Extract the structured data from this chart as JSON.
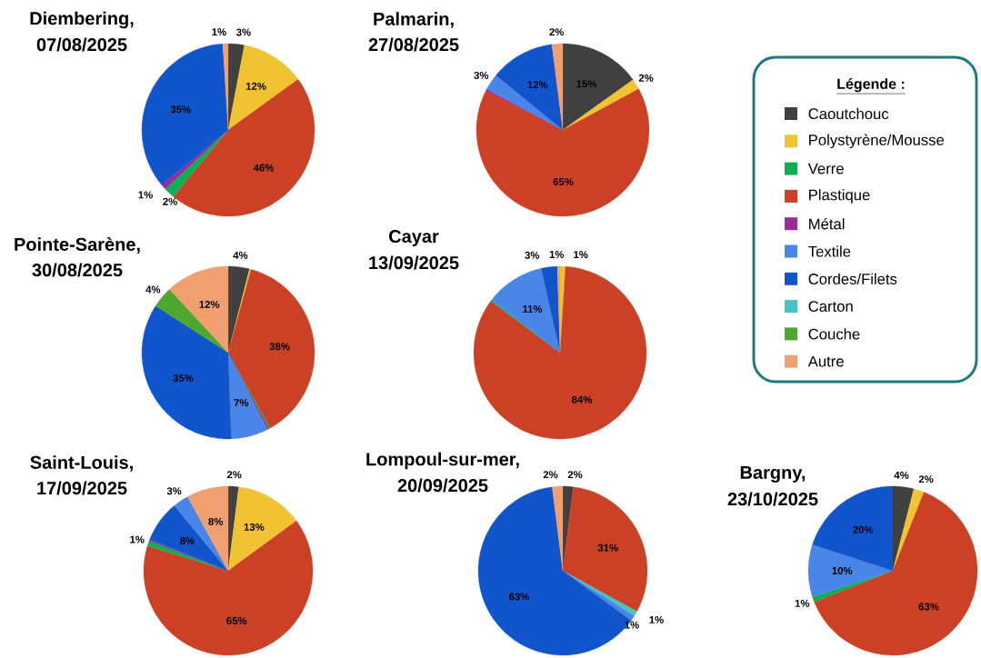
{
  "chart_data": [
    {
      "type": "pie",
      "title": "Diembering,",
      "subtitle": "07/08/2025",
      "values": [
        3,
        12,
        46,
        2,
        1,
        35,
        1
      ],
      "colors": [
        "#404040",
        "#f1c232",
        "#cc4125",
        "#0fae52",
        "#9c2a9c",
        "#1155cc",
        "#f0a070"
      ],
      "value_labels": [
        "3%",
        "12%",
        "46%",
        "2%",
        "1%",
        "35%",
        "1%"
      ]
    },
    {
      "type": "pie",
      "title": "Palmarin,",
      "subtitle": "27/08/2025",
      "values": [
        15,
        2,
        65,
        0.3,
        3,
        12,
        2
      ],
      "colors": [
        "#404040",
        "#f1c232",
        "#cc4125",
        "#9c2a9c",
        "#4a86e8",
        "#1155cc",
        "#f0a070"
      ],
      "value_labels": [
        "15%",
        "2%",
        "65%",
        null,
        "3%",
        "12%",
        "2%"
      ]
    },
    {
      "type": "pie",
      "title": "Pointe-Sarène,",
      "subtitle": "30/08/2025",
      "values": [
        4,
        0.3,
        38,
        0.3,
        0.3,
        7,
        35,
        4,
        12
      ],
      "colors": [
        "#404040",
        "#f1c232",
        "#cc4125",
        "#0fae52",
        "#9c2a9c",
        "#4a86e8",
        "#1155cc",
        "#4ea72e",
        "#f0a070"
      ],
      "value_labels": [
        "4%",
        null,
        "38%",
        null,
        null,
        "7%",
        "35%",
        "4%",
        "12%"
      ]
    },
    {
      "type": "pie",
      "title": "Cayar",
      "subtitle": "13/09/2025",
      "values": [
        1,
        84,
        0.3,
        11,
        3,
        0.5
      ],
      "colors": [
        "#f1c232",
        "#cc4125",
        "#0fae52",
        "#4a86e8",
        "#1155cc",
        "#f0a070"
      ],
      "value_labels": [
        "1%",
        "84%",
        null,
        "11%",
        "3%",
        "1%"
      ]
    },
    {
      "type": "pie",
      "title": "Saint-Louis,",
      "subtitle": "17/09/2025",
      "values": [
        2,
        13,
        65,
        1,
        0.3,
        8,
        3,
        8
      ],
      "colors": [
        "#404040",
        "#f1c232",
        "#cc4125",
        "#0fae52",
        "#9c2a9c",
        "#1155cc",
        "#4a86e8",
        "#f0a070"
      ],
      "value_labels": [
        "2%",
        "13%",
        "65%",
        "1%",
        null,
        "8%",
        "3%",
        "8%"
      ]
    },
    {
      "type": "pie",
      "title": "Lompoul-sur-mer,",
      "subtitle": "20/09/2025",
      "values": [
        2,
        31,
        1,
        1,
        63,
        2
      ],
      "colors": [
        "#404040",
        "#cc4125",
        "#45c4c4",
        "#4a86e8",
        "#1155cc",
        "#f0a070"
      ],
      "value_labels": [
        "2%",
        "31%",
        "1%",
        "1%",
        "63%",
        "2%"
      ]
    },
    {
      "type": "pie",
      "title": "Bargny,",
      "subtitle": "23/10/2025",
      "values": [
        4,
        2,
        63,
        1,
        10,
        20
      ],
      "colors": [
        "#404040",
        "#f1c232",
        "#cc4125",
        "#0fae52",
        "#4a86e8",
        "#1155cc"
      ],
      "value_labels": [
        "4%",
        "2%",
        "63%",
        "1%",
        "10%",
        "20%"
      ]
    },
    {
      "type": "other",
      "legend_title": "Légende :",
      "categories": [
        "Caoutchouc",
        "Polystyrène/Mousse",
        "Verre",
        "Plastique",
        "Métal",
        "Textile",
        "Cordes/Filets",
        "Carton",
        "Couche",
        "Autre"
      ],
      "colors": [
        "#404040",
        "#f1c232",
        "#0fae52",
        "#cc4125",
        "#9c2a9c",
        "#4a86e8",
        "#1155cc",
        "#45c4c4",
        "#4ea72e",
        "#f0a070"
      ]
    }
  ]
}
